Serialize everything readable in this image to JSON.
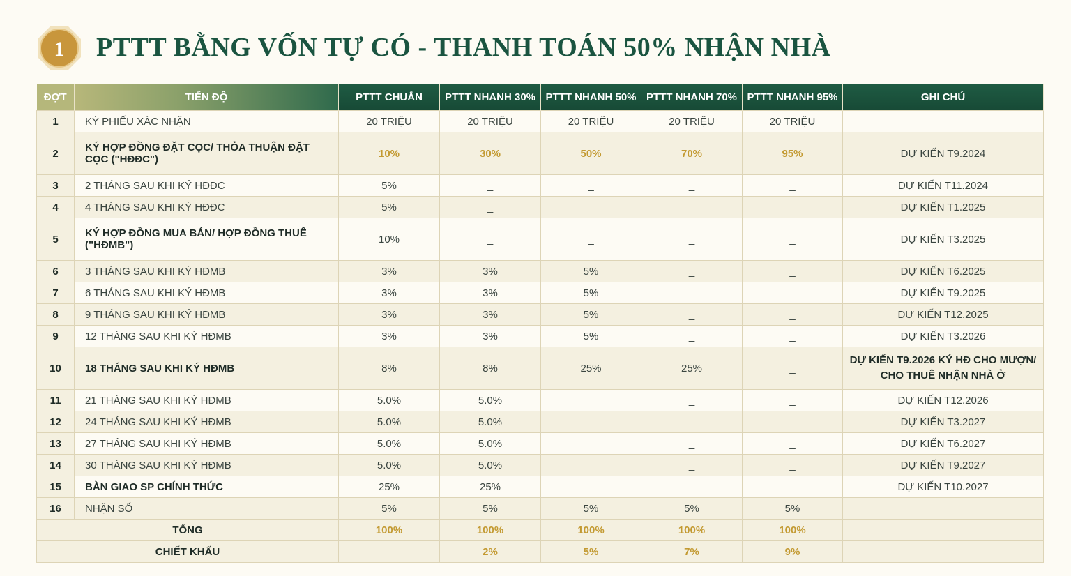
{
  "header": {
    "badge_number": "1",
    "title": "PTTT BẰNG VỐN TỰ CÓ - THANH TOÁN 50% NHẬN NHÀ"
  },
  "colors": {
    "green": "#1a5440",
    "gold": "#c39a32",
    "badge": "#c8963c"
  },
  "columns": [
    "ĐỢT",
    "TIẾN ĐỘ",
    "PTTT CHUẨN",
    "PTTT NHANH 30%",
    "PTTT NHANH 50%",
    "PTTT NHANH 70%",
    "PTTT NHANH 95%",
    "GHI CHÚ"
  ],
  "rows": [
    {
      "dot": "1",
      "tien": "KÝ PHIẾU XÁC NHẬN",
      "v": [
        "20 TRIỆU",
        "20 TRIỆU",
        "20 TRIỆU",
        "20 TRIỆU",
        "20 TRIỆU"
      ],
      "note": "",
      "bold": false,
      "gold": false,
      "tall": false
    },
    {
      "dot": "2",
      "tien": "KÝ HỢP ĐỒNG ĐẶT CỌC/ THỎA THUẬN ĐẶT CỌC (\"HĐĐC\")",
      "v": [
        "10%",
        "30%",
        "50%",
        "70%",
        "95%"
      ],
      "note": "DỰ KIẾN T9.2024",
      "bold": true,
      "gold": true,
      "tall": true
    },
    {
      "dot": "3",
      "tien": "2 THÁNG SAU KHI KÝ HĐĐC",
      "v": [
        "5%",
        "_",
        "_",
        "_",
        "_"
      ],
      "note": "DỰ KIẾN T11.2024",
      "bold": false,
      "gold": false,
      "tall": false
    },
    {
      "dot": "4",
      "tien": "4 THÁNG SAU KHI KÝ HĐĐC",
      "v": [
        "5%",
        "_",
        "",
        "",
        ""
      ],
      "note": "DỰ KIẾN T1.2025",
      "bold": false,
      "gold": false,
      "tall": false
    },
    {
      "dot": "5",
      "tien": "KÝ HỢP ĐỒNG MUA BÁN/ HỢP ĐỒNG THUÊ (\"HĐMB\")",
      "v": [
        "10%",
        "_",
        "_",
        "_",
        "_"
      ],
      "note": "DỰ KIẾN T3.2025",
      "bold": true,
      "gold": false,
      "tall": true
    },
    {
      "dot": "6",
      "tien": "3 THÁNG SAU KHI KÝ HĐMB",
      "v": [
        "3%",
        "3%",
        "5%",
        "_",
        "_"
      ],
      "note": "DỰ KIẾN T6.2025",
      "bold": false,
      "gold": false,
      "tall": false
    },
    {
      "dot": "7",
      "tien": "6 THÁNG SAU KHI KÝ HĐMB",
      "v": [
        "3%",
        "3%",
        "5%",
        "_",
        "_"
      ],
      "note": "DỰ KIẾN T9.2025",
      "bold": false,
      "gold": false,
      "tall": false
    },
    {
      "dot": "8",
      "tien": "9 THÁNG SAU KHI KÝ HĐMB",
      "v": [
        "3%",
        "3%",
        "5%",
        "_",
        "_"
      ],
      "note": "DỰ KIẾN T12.2025",
      "bold": false,
      "gold": false,
      "tall": false
    },
    {
      "dot": "9",
      "tien": "12 THÁNG SAU KHI KÝ HĐMB",
      "v": [
        "3%",
        "3%",
        "5%",
        "_",
        "_"
      ],
      "note": "DỰ KIẾN T3.2026",
      "bold": false,
      "gold": false,
      "tall": false
    },
    {
      "dot": "10",
      "tien": "18 THÁNG SAU KHI KÝ HĐMB",
      "v": [
        "8%",
        "8%",
        "25%",
        "25%",
        "_"
      ],
      "note": "DỰ KIẾN T9.2026 KÝ HĐ CHO MƯỢN/ CHO THUÊ NHẬN NHÀ Ở",
      "bold": true,
      "gold": false,
      "tall": true,
      "note_bold": true
    },
    {
      "dot": "11",
      "tien": "21 THÁNG SAU KHI KÝ HĐMB",
      "v": [
        "5.0%",
        "5.0%",
        "",
        "_",
        "_"
      ],
      "note": "DỰ KIẾN T12.2026",
      "bold": false,
      "gold": false,
      "tall": false
    },
    {
      "dot": "12",
      "tien": "24 THÁNG SAU KHI KÝ HĐMB",
      "v": [
        "5.0%",
        "5.0%",
        "",
        "_",
        "_"
      ],
      "note": "DỰ KIẾN T3.2027",
      "bold": false,
      "gold": false,
      "tall": false
    },
    {
      "dot": "13",
      "tien": "27 THÁNG SAU KHI KÝ HĐMB",
      "v": [
        "5.0%",
        "5.0%",
        "",
        "_",
        "_"
      ],
      "note": "DỰ KIẾN T6.2027",
      "bold": false,
      "gold": false,
      "tall": false
    },
    {
      "dot": "14",
      "tien": "30 THÁNG SAU KHI KÝ HĐMB",
      "v": [
        "5.0%",
        "5.0%",
        "",
        "_",
        "_"
      ],
      "note": "DỰ KIẾN T9.2027",
      "bold": false,
      "gold": false,
      "tall": false
    },
    {
      "dot": "15",
      "tien": "BÀN GIAO SP CHÍNH THỨC",
      "v": [
        "25%",
        "25%",
        "",
        "",
        "_"
      ],
      "note": "DỰ KIẾN T10.2027",
      "bold": true,
      "gold": false,
      "tall": false
    },
    {
      "dot": "16",
      "tien": "NHẬN SỔ",
      "v": [
        "5%",
        "5%",
        "5%",
        "5%",
        "5%"
      ],
      "note": "",
      "bold": false,
      "gold": false,
      "tall": false
    }
  ],
  "totals": [
    {
      "label": "TỔNG",
      "v": [
        "100%",
        "100%",
        "100%",
        "100%",
        "100%"
      ]
    },
    {
      "label": "CHIẾT KHẤU",
      "v": [
        "_",
        "2%",
        "5%",
        "7%",
        "9%"
      ]
    }
  ]
}
